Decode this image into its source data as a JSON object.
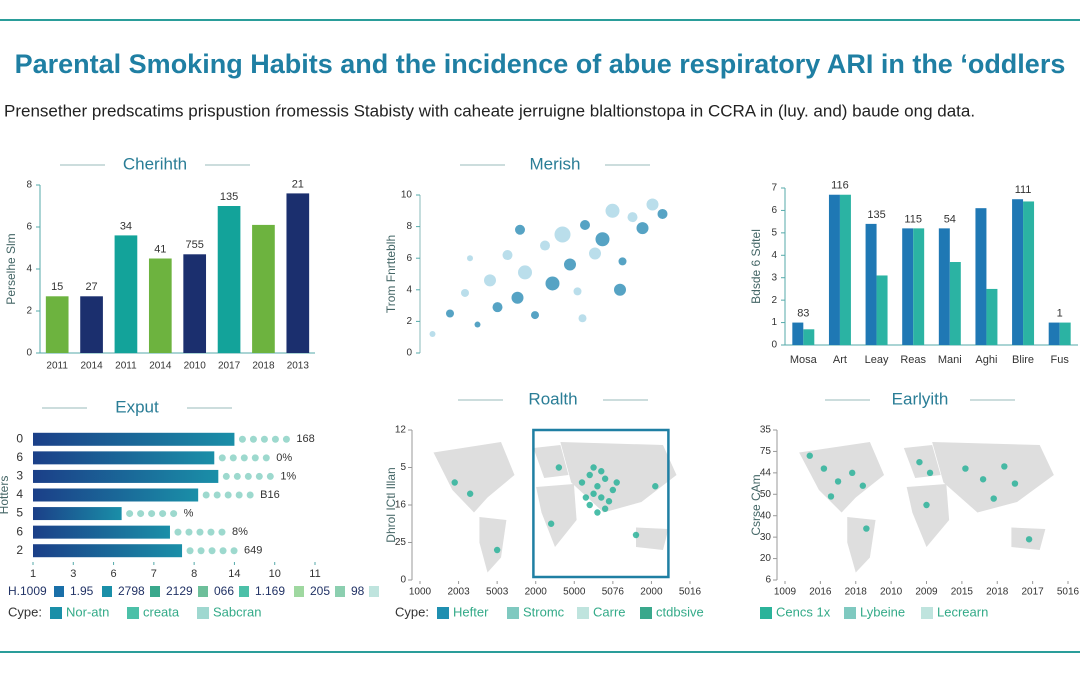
{
  "header": {
    "title": "Parental Smoking Habits and the incidence of abue respiratory ARI in the ‘oddlers",
    "subtitle": "Prensether predscatims prispustion ŕromessis Stabisty with caheate jerruigne blaltionstopa in CCRA in (luy. and) baude ong data."
  },
  "chart_data": [
    {
      "type": "bar",
      "title": "Cherihth",
      "y_label": "Perselhe Slm",
      "categories": [
        "2011",
        "2014",
        "2011",
        "2014",
        "2010",
        "2017",
        "2018",
        "2013"
      ],
      "values": [
        2.7,
        2.7,
        5.6,
        4.5,
        4.7,
        7.0,
        6.1,
        7.6
      ],
      "colors": [
        "#6db33f",
        "#1b2f6e",
        "#13a39a",
        "#6db33f",
        "#1b2f6e",
        "#13a39a",
        "#6db33f",
        "#1b2f6e"
      ],
      "annotations": [
        "15",
        "27",
        "34",
        "41",
        "755",
        "135",
        null,
        "21"
      ],
      "ylim": [
        0,
        8
      ],
      "yticks": [
        0,
        2,
        4,
        6,
        8
      ]
    },
    {
      "type": "scatter",
      "title": "Merish",
      "y_label": "Trom Fnrtteblh",
      "xlim": [
        0,
        10
      ],
      "ylim": [
        0,
        10
      ],
      "yticks": [
        0,
        2,
        4,
        6,
        8,
        10
      ],
      "series": [
        {
          "color": "#a9d6e6",
          "x": [
            0.5,
            1.8,
            2.8,
            3.5,
            4.2,
            5.0,
            5.7,
            6.3,
            7.0,
            7.7,
            8.5,
            9.3,
            2.0,
            6.5
          ],
          "y": [
            1.2,
            3.8,
            4.6,
            6.2,
            5.1,
            6.8,
            7.5,
            3.9,
            6.3,
            9.0,
            8.6,
            9.4,
            6.0,
            2.2
          ],
          "sizes": [
            3,
            4,
            6,
            5,
            7,
            5,
            8,
            4,
            6,
            7,
            5,
            6,
            3,
            4
          ]
        },
        {
          "color": "#2c8cb5",
          "x": [
            1.2,
            2.3,
            3.1,
            3.9,
            4.6,
            5.3,
            6.0,
            6.6,
            7.3,
            8.1,
            8.9,
            9.7,
            4.0,
            8.0
          ],
          "y": [
            2.5,
            1.8,
            2.9,
            3.5,
            2.4,
            4.4,
            5.6,
            8.1,
            7.2,
            5.8,
            7.9,
            8.8,
            7.8,
            4.0
          ],
          "sizes": [
            4,
            3,
            5,
            6,
            4,
            7,
            6,
            5,
            7,
            4,
            6,
            5,
            5,
            6
          ]
        }
      ]
    },
    {
      "type": "grouped_bar",
      "categories": [
        "Mosa",
        "Art",
        "Leay",
        "Reas",
        "Mani",
        "Aghi",
        "Blire",
        "Fus"
      ],
      "y_label": "Bdsde 6 Sdtel",
      "ylim": [
        0,
        7
      ],
      "yticks": [
        0,
        1,
        2,
        3,
        4,
        5,
        6,
        7
      ],
      "series": [
        {
          "color": "#1f78b4",
          "values": [
            1.0,
            6.7,
            5.4,
            5.2,
            5.2,
            6.1,
            6.5,
            1.0
          ]
        },
        {
          "color": "#2bb3a3",
          "values": [
            0.7,
            6.7,
            3.1,
            5.2,
            3.7,
            2.5,
            6.4,
            1.0
          ]
        }
      ],
      "annotations": [
        "83",
        "116",
        "135",
        "115",
        "54",
        null,
        "111",
        "1"
      ]
    },
    {
      "type": "hbar",
      "title": "Exput",
      "y_label": "Hotters",
      "categories": [
        "0",
        "6",
        "3",
        "4",
        "5",
        "6",
        "2"
      ],
      "values": [
        5.0,
        4.5,
        4.6,
        4.1,
        2.2,
        3.4,
        3.7
      ],
      "color": "#1a8fa8",
      "annotations": [
        "168",
        "0%",
        "1%",
        "B16",
        "%",
        "8%",
        "649"
      ],
      "xlim": [
        0,
        7
      ],
      "xticks": [
        {
          "value": 0,
          "label": "1"
        },
        {
          "value": 1,
          "label": "3"
        },
        {
          "value": 2,
          "label": "6"
        },
        {
          "value": 3,
          "label": "7"
        },
        {
          "value": 4,
          "label": "8"
        },
        {
          "value": 5,
          "label": "14"
        },
        {
          "value": 6,
          "label": "10"
        },
        {
          "value": 7,
          "label": "11"
        }
      ],
      "notes": [
        "H.1009",
        "1.95",
        "2798",
        "2129",
        "066",
        "1.169",
        "205",
        "98"
      ],
      "legend": {
        "title": "Cype:",
        "items": [
          "Nor-atn",
          "creata",
          "Sabcran"
        ],
        "colors": [
          "#1a8fa8",
          "#4cc0a8",
          "#9fd8d0"
        ]
      }
    },
    {
      "type": "map",
      "title": "Roalth",
      "y_label": "Dhrol ICtl Illan",
      "highlight": true,
      "xlim": [
        0,
        7
      ],
      "ylim": [
        0,
        4
      ],
      "xticks": [
        {
          "value": 0,
          "label": "1000"
        },
        {
          "value": 1,
          "label": "2003"
        },
        {
          "value": 2,
          "label": "5003"
        },
        {
          "value": 3,
          "label": "2000"
        },
        {
          "value": 4,
          "label": "5000"
        },
        {
          "value": 5,
          "label": "5076"
        },
        {
          "value": 6,
          "label": "2000"
        },
        {
          "value": 7,
          "label": "5016"
        }
      ],
      "yticks": [
        {
          "value": 0,
          "label": "0"
        },
        {
          "value": 1,
          "label": "25"
        },
        {
          "value": 2,
          "label": "16"
        },
        {
          "value": 3,
          "label": "5"
        },
        {
          "value": 4,
          "label": "12"
        }
      ],
      "series": [
        {
          "color": "#2bb39a",
          "x": [
            4.2,
            4.4,
            4.6,
            4.8,
            5.0,
            4.3,
            4.5,
            4.7,
            4.9,
            5.1,
            4.4,
            4.6,
            4.8,
            4.5,
            4.7,
            0.9,
            1.3,
            3.4,
            3.6,
            2.0,
            6.1,
            5.6
          ],
          "y": [
            2.6,
            2.8,
            2.5,
            2.7,
            2.4,
            2.2,
            2.3,
            2.9,
            2.1,
            2.6,
            2.0,
            1.8,
            1.9,
            3.0,
            2.2,
            2.6,
            2.3,
            1.5,
            3.0,
            0.8,
            2.5,
            1.2
          ]
        }
      ],
      "legend": {
        "title": "Cype:",
        "items": [
          "Hefter",
          "Stromc",
          "Carre",
          "ctdbsive"
        ],
        "colors": [
          "#1f8fb0",
          "#7fc9c0",
          "#bfe4de",
          "#3aa88c"
        ]
      }
    },
    {
      "type": "map",
      "title": "Earlyith",
      "y_label": "Csrse CAm",
      "highlight": false,
      "xlim": [
        0,
        8
      ],
      "ylim": [
        0,
        7
      ],
      "xticks": [
        {
          "value": 0,
          "label": "1009"
        },
        {
          "value": 1,
          "label": "2016"
        },
        {
          "value": 2,
          "label": "2018"
        },
        {
          "value": 3,
          "label": "2010"
        },
        {
          "value": 4,
          "label": "2009"
        },
        {
          "value": 5,
          "label": "2015"
        },
        {
          "value": 6,
          "label": "2018"
        },
        {
          "value": 7,
          "label": "2017"
        },
        {
          "value": 8,
          "label": "5016"
        }
      ],
      "yticks": [
        {
          "value": 0,
          "label": "6"
        },
        {
          "value": 1,
          "label": "20"
        },
        {
          "value": 2,
          "label": "30"
        },
        {
          "value": 3,
          "label": "40"
        },
        {
          "value": 4,
          "label": "50"
        },
        {
          "value": 5,
          "label": "44"
        },
        {
          "value": 6,
          "label": "75"
        },
        {
          "value": 7,
          "label": "35"
        }
      ],
      "series": [
        {
          "color": "#2bb39a",
          "x": [
            1.1,
            1.5,
            1.9,
            2.2,
            1.3,
            2.3,
            3.8,
            4.1,
            4.0,
            5.1,
            5.6,
            6.2,
            6.5,
            5.9,
            6.9,
            0.7
          ],
          "y": [
            5.2,
            4.6,
            5.0,
            4.4,
            3.9,
            2.4,
            5.5,
            5.0,
            3.5,
            5.2,
            4.7,
            5.3,
            4.5,
            3.8,
            1.9,
            5.8
          ]
        }
      ],
      "legend": {
        "title": null,
        "items": [
          "Cencs 1x",
          "Lybeine",
          "Lecrearn"
        ],
        "colors": [
          "#2bb39a",
          "#7fc9c0",
          "#bfe4de"
        ]
      }
    }
  ]
}
